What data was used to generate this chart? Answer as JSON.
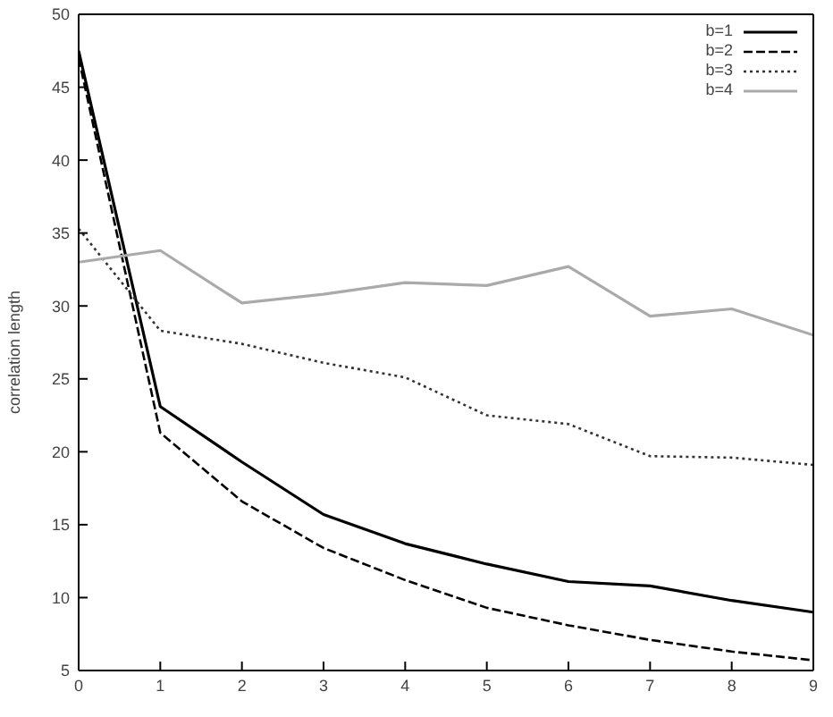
{
  "chart_data": {
    "type": "line",
    "ylabel": "correlation length",
    "x": [
      0,
      1,
      2,
      3,
      4,
      5,
      6,
      7,
      8,
      9
    ],
    "xlim": [
      0,
      9
    ],
    "xticks": [
      0,
      1,
      2,
      3,
      4,
      5,
      6,
      7,
      8,
      9
    ],
    "ylim": [
      5,
      50
    ],
    "yticks": [
      5,
      10,
      15,
      20,
      25,
      30,
      35,
      40,
      45,
      50
    ],
    "grid": false,
    "legend": "top right",
    "marker": "none",
    "series": [
      {
        "name": "b=1",
        "color": "#000000",
        "line_style": "solid",
        "values": [
          47.5,
          23.1,
          19.3,
          15.7,
          13.7,
          12.3,
          11.1,
          10.8,
          9.8,
          9.0
        ]
      },
      {
        "name": "b=2",
        "color": "#000000",
        "line_style": "dashed",
        "values": [
          47.0,
          21.3,
          16.6,
          13.4,
          11.2,
          9.3,
          8.1,
          7.1,
          6.3,
          5.7
        ]
      },
      {
        "name": "b=3",
        "color": "#333333",
        "line_style": "dotted",
        "values": [
          35.3,
          28.3,
          27.4,
          26.1,
          25.1,
          22.5,
          21.9,
          19.7,
          19.6,
          19.1
        ]
      },
      {
        "name": "b=4",
        "color": "#aaaaaa",
        "line_style": "solid",
        "values": [
          33.0,
          33.8,
          30.2,
          30.8,
          31.6,
          31.4,
          32.7,
          29.3,
          29.8,
          28.0
        ]
      }
    ]
  }
}
